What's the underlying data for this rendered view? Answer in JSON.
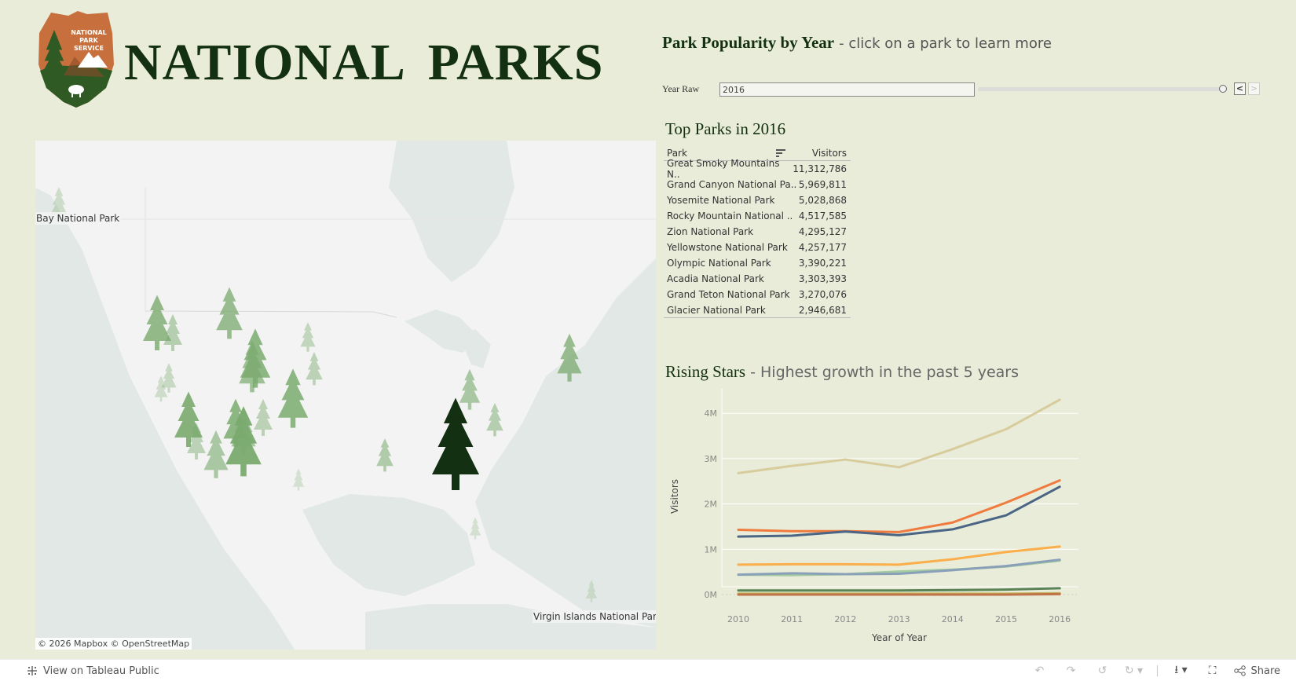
{
  "header": {
    "title": "NATIONAL PARKS",
    "logo": {
      "line1": "NATIONAL",
      "line2": "PARK",
      "line3": "SERVICE",
      "icon": "nps-arrowhead-logo"
    }
  },
  "map": {
    "labels": [
      {
        "text": "Bay National Park"
      },
      {
        "text": "Virgin Islands National Park"
      }
    ],
    "attribution": "© 2026 Mapbox  © OpenStreetMap",
    "marker_icon": "pine-tree-icon",
    "colors": {
      "land": "#f2f3f2",
      "water": "#e2e8e6",
      "highlight": "#143012",
      "marker": "#7aaa6e"
    }
  },
  "popularity": {
    "title": "Park Popularity by Year",
    "subtitle": "- click on a park to learn more",
    "filter_label": "Year Raw",
    "filter_value": "2016",
    "prev_label": "<",
    "next_label": ">"
  },
  "top_parks": {
    "title": "Top Parks in 2016",
    "columns": [
      "Park",
      "Visitors"
    ],
    "rows": [
      {
        "park": "Great Smoky Mountains N..",
        "visitors": "11,312,786"
      },
      {
        "park": "Grand Canyon National Pa..",
        "visitors": "5,969,811"
      },
      {
        "park": "Yosemite National Park",
        "visitors": "5,028,868"
      },
      {
        "park": "Rocky Mountain National ..",
        "visitors": "4,517,585"
      },
      {
        "park": "Zion National Park",
        "visitors": "4,295,127"
      },
      {
        "park": "Yellowstone National Park",
        "visitors": "4,257,177"
      },
      {
        "park": "Olympic National Park",
        "visitors": "3,390,221"
      },
      {
        "park": "Acadia National Park",
        "visitors": "3,303,393"
      },
      {
        "park": "Grand Teton National Park",
        "visitors": "3,270,076"
      },
      {
        "park": "Glacier National Park",
        "visitors": "2,946,681"
      }
    ]
  },
  "rising": {
    "title": "Rising Stars",
    "subtitle": "- Highest growth in the past 5 years"
  },
  "chart_data": {
    "type": "line",
    "title": "Rising Stars - Highest growth in the past 5 years",
    "xlabel": "Year of Year",
    "ylabel": "Visitors",
    "x": [
      2010,
      2011,
      2012,
      2013,
      2014,
      2015,
      2016
    ],
    "y_ticks": [
      "0M",
      "1M",
      "2M",
      "3M",
      "4M"
    ],
    "ylim": [
      0,
      4.4
    ],
    "grid": true,
    "legend": "none",
    "series": [
      {
        "name": "series-tan",
        "color": "#d8cc9c",
        "values": [
          2.68,
          2.84,
          2.98,
          2.81,
          3.21,
          3.65,
          4.3
        ]
      },
      {
        "name": "series-orange",
        "color": "#f07b3f",
        "values": [
          1.43,
          1.4,
          1.4,
          1.38,
          1.59,
          2.03,
          2.52
        ]
      },
      {
        "name": "series-dark-blue",
        "color": "#4b6584",
        "values": [
          1.28,
          1.3,
          1.39,
          1.31,
          1.44,
          1.75,
          2.38
        ]
      },
      {
        "name": "series-light-orange",
        "color": "#fbae4a",
        "values": [
          0.66,
          0.67,
          0.67,
          0.66,
          0.78,
          0.94,
          1.06
        ]
      },
      {
        "name": "series-light-green",
        "color": "#a4cca0",
        "values": [
          0.44,
          0.43,
          0.45,
          0.51,
          0.55,
          0.62,
          0.75
        ]
      },
      {
        "name": "series-steel-blue",
        "color": "#8aa0b8",
        "values": [
          0.44,
          0.47,
          0.45,
          0.46,
          0.54,
          0.63,
          0.77
        ]
      },
      {
        "name": "series-dark-green",
        "color": "#5a8456",
        "values": [
          0.09,
          0.09,
          0.09,
          0.09,
          0.1,
          0.11,
          0.14
        ]
      },
      {
        "name": "series-olive",
        "color": "#c4b55a",
        "values": [
          0.02,
          0.02,
          0.02,
          0.02,
          0.02,
          0.02,
          0.03
        ]
      },
      {
        "name": "series-red-brown",
        "color": "#c0744a",
        "values": [
          0.0,
          0.0,
          0.0,
          0.0,
          0.0,
          0.0,
          0.01
        ]
      }
    ]
  },
  "footer": {
    "view_on": "View on Tableau Public",
    "share": "Share",
    "tools": [
      "undo-icon",
      "redo-icon",
      "revert-icon",
      "refresh-icon",
      "download-icon",
      "fullscreen-icon"
    ]
  }
}
